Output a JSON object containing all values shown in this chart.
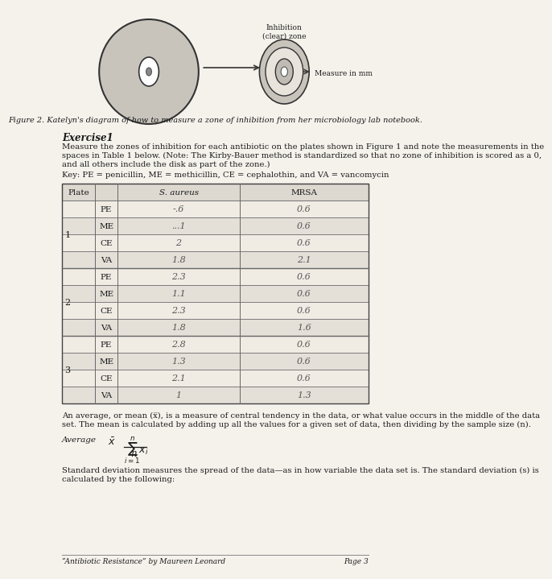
{
  "bg_color": "#e8e4dc",
  "page_bg": "#f5f2ec",
  "figure_caption": "Figure 2. Katelyn's diagram of how to measure a zone of inhibition from her microbiology lab notebook.",
  "inhibition_label": "Inhibition\n(clear) zone",
  "measure_label": "Measure in mm",
  "exercise_title": "Exercise1",
  "exercise_text": "Measure the zones of inhibition for each antibiotic on the plates shown in Figure 1 and note the measurements in the\nspaces in Table 1 below. (Note: The Kirby-Bauer method is standardized so that no zone of inhibition is scored as a 0,\nand all others include the disk as part of the zone.)",
  "key_text": "Key: PE = penicillin, ME = methicillin, CE = cephalothin, and VA = vancomycin",
  "table_headers": [
    "Plate",
    "S. aureus",
    "MRSA"
  ],
  "plates": [
    "1",
    "2",
    "3"
  ],
  "antibiotics": [
    "PE",
    "ME",
    "CE",
    "VA"
  ],
  "saureus_data": [
    [
      "-.6",
      "...1",
      "2",
      "1.8"
    ],
    [
      "2.3",
      "1.1",
      "2.3",
      "1.8"
    ],
    [
      "2.8",
      "1.3",
      "2.1",
      "1"
    ]
  ],
  "mrsa_data": [
    [
      "0.6",
      "0.6",
      "0.6",
      "2.1"
    ],
    [
      "0.6",
      "0.6",
      "0.6",
      "1.6"
    ],
    [
      "0.6",
      "0.6",
      "0.6",
      "1.3"
    ]
  ],
  "avg_text": "An average, or mean (x̅), is a measure of central tendency in the data, or what value occurs in the middle of the data\nset. The mean is calculated by adding up all the values for a given set of data, then dividing by the sample size (n).",
  "average_label": "Average",
  "std_text": "Standard deviation measures the spread of the data—as in how variable the data set is. The standard deviation (s) is\ncalculated by the following:",
  "footer_left": "“Antibiotic Resistance” by Maureen Leonard",
  "footer_right": "Page 3",
  "handwritten_color": "#555555",
  "table_line_color": "#666666",
  "text_color": "#1a1a1a",
  "light_gray": "#d0ccc4"
}
